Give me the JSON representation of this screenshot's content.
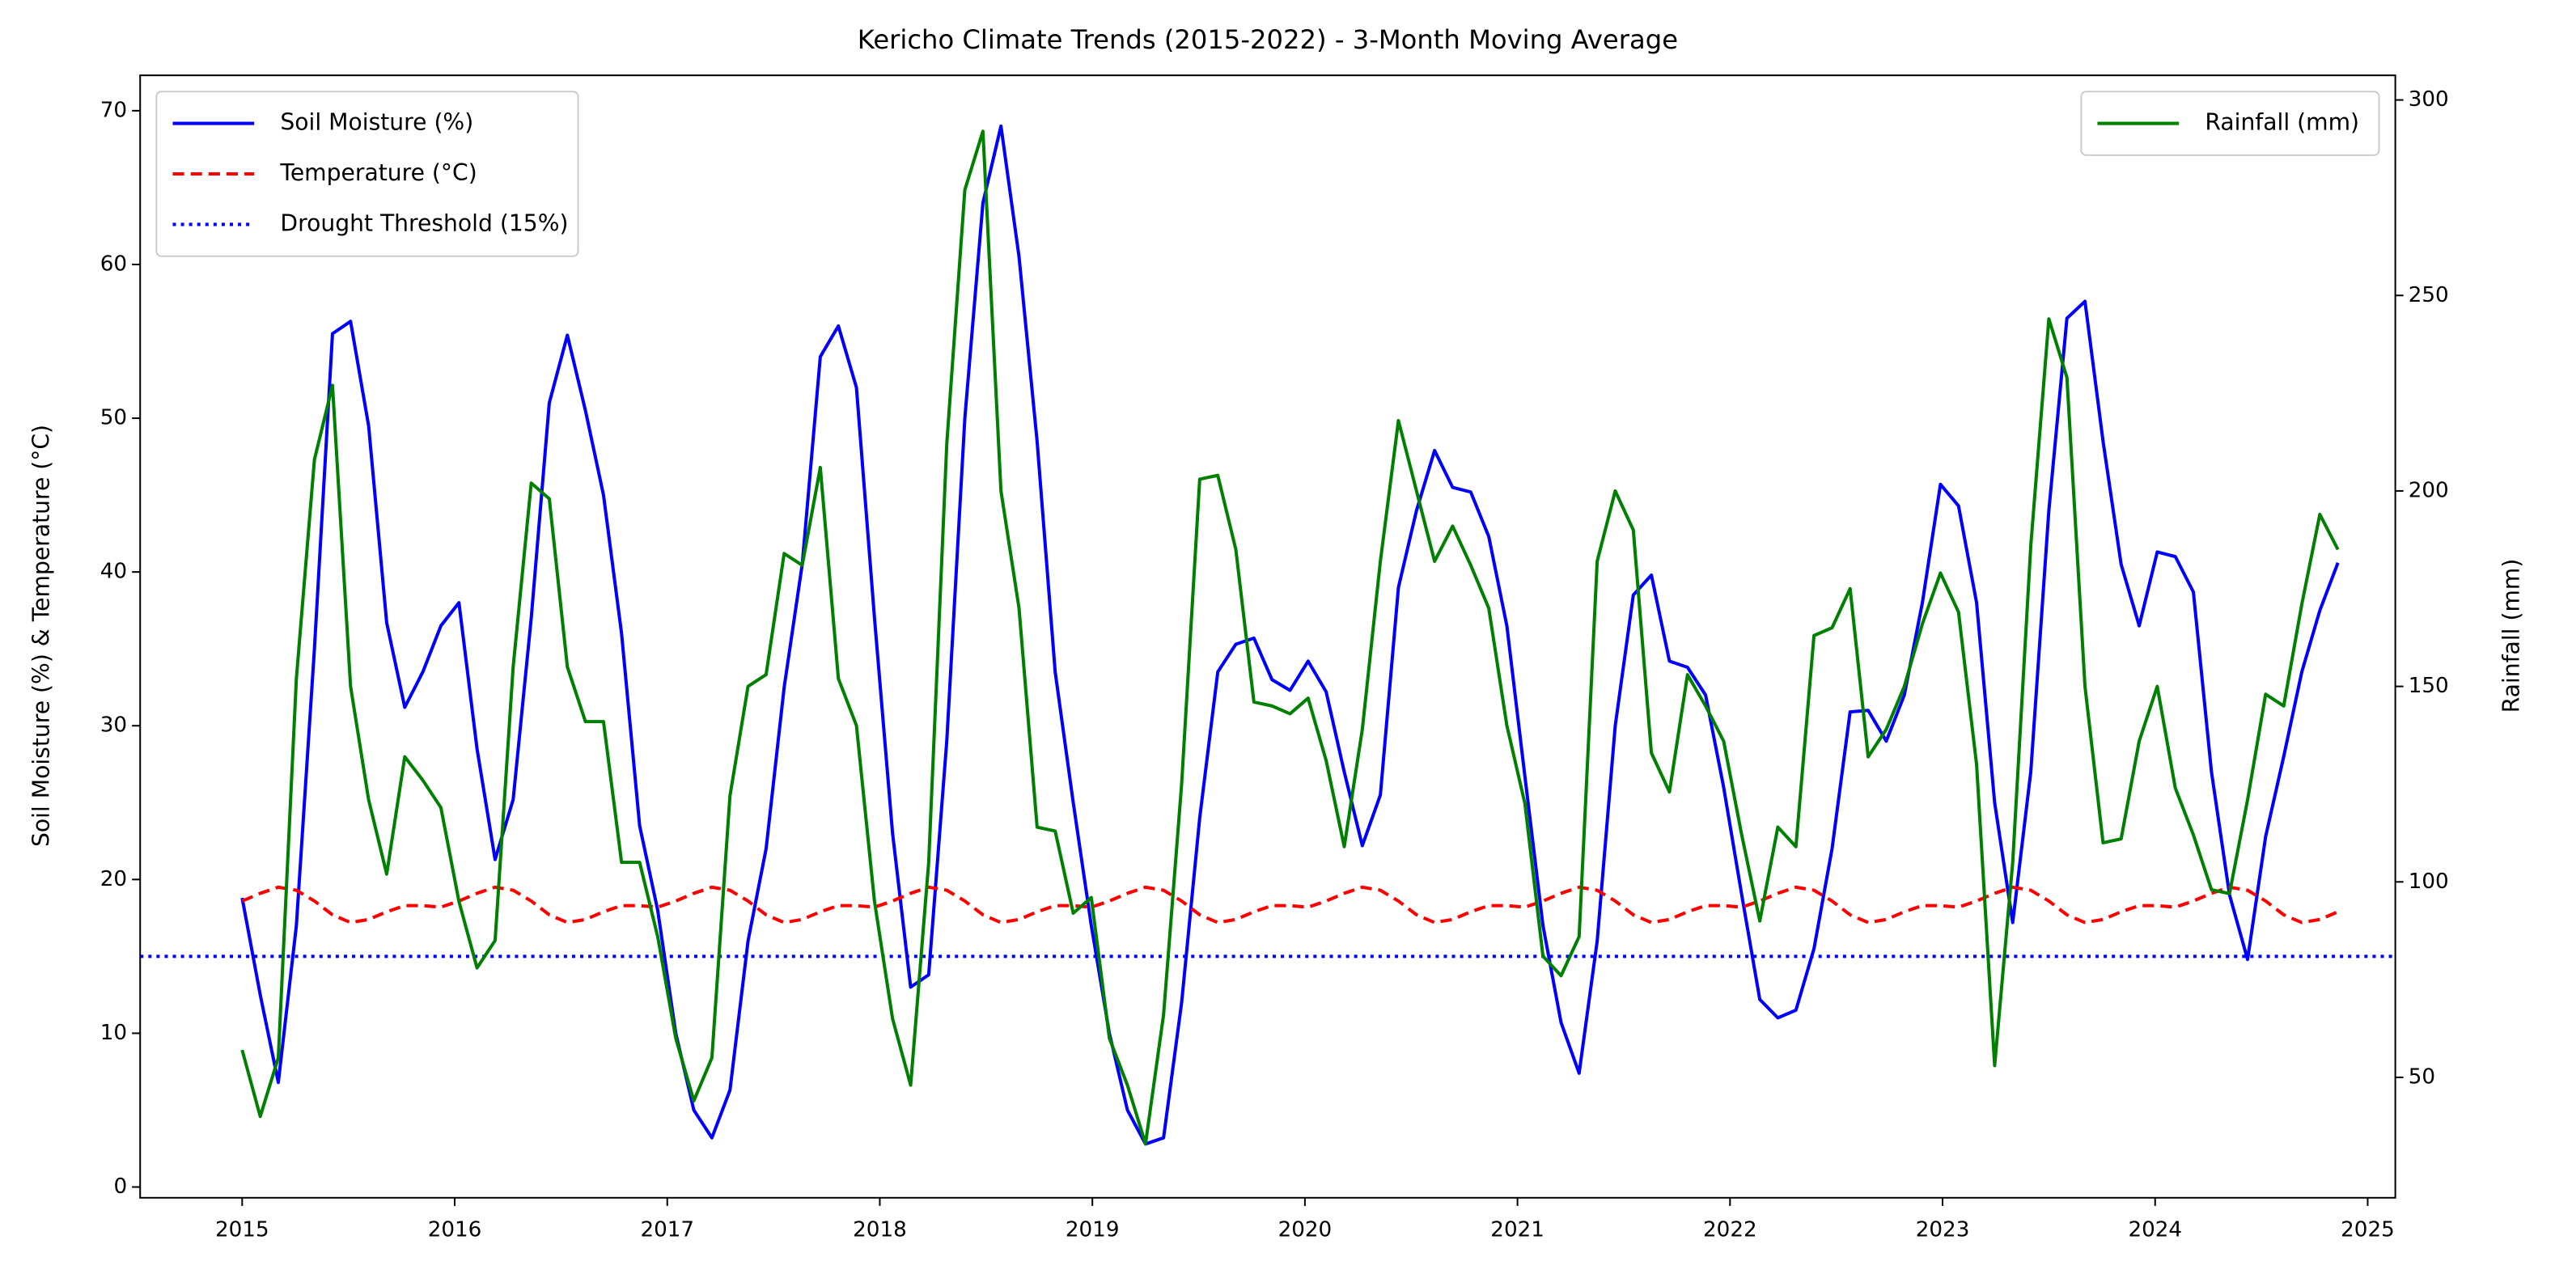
{
  "chart_data": {
    "type": "line",
    "title": "Kericho Climate Trends (2015-2022) - 3-Month Moving Average",
    "ylabel": "Soil Moisture (%) & Temperature (°C)",
    "y2label": "Rainfall (mm)",
    "x": [
      2015,
      2015.085,
      2015.17,
      2015.255,
      2015.34,
      2015.425,
      2015.51,
      2015.595,
      2015.68,
      2015.765,
      2015.85,
      2015.935,
      2016.02,
      2016.105,
      2016.19,
      2016.275,
      2016.36,
      2016.445,
      2016.53,
      2016.615,
      2016.7,
      2016.785,
      2016.87,
      2016.955,
      2017.04,
      2017.125,
      2017.21,
      2017.295,
      2017.38,
      2017.465,
      2017.55,
      2017.635,
      2017.72,
      2017.805,
      2017.89,
      2017.975,
      2018.06,
      2018.145,
      2018.23,
      2018.315,
      2018.4,
      2018.485,
      2018.57,
      2018.655,
      2018.74,
      2018.825,
      2018.91,
      2018.995,
      2019.08,
      2019.165,
      2019.25,
      2019.335,
      2019.42,
      2019.505,
      2019.59,
      2019.675,
      2019.76,
      2019.845,
      2019.93,
      2020.015,
      2020.1,
      2020.185,
      2020.27,
      2020.355,
      2020.44,
      2020.525,
      2020.61,
      2020.695,
      2020.78,
      2020.865,
      2020.95,
      2021.035,
      2021.12,
      2021.205,
      2021.29,
      2021.375,
      2021.46,
      2021.545,
      2021.63,
      2021.715,
      2021.8,
      2021.885,
      2021.97,
      2022.055,
      2022.14,
      2022.225,
      2022.31,
      2022.395,
      2022.48,
      2022.565,
      2022.65,
      2022.735,
      2022.82,
      2022.905,
      2022.99,
      2023.075,
      2023.16,
      2023.245,
      2023.33,
      2023.415,
      2023.5,
      2023.585,
      2023.67,
      2023.755,
      2023.84,
      2023.925,
      2024.01,
      2024.095,
      2024.18,
      2024.265,
      2024.35,
      2024.435,
      2024.52,
      2024.605,
      2024.69,
      2024.775,
      2024.86
    ],
    "series": [
      {
        "name": "Soil Moisture (%)",
        "color": "#0000ff",
        "style": "solid",
        "axis": "y",
        "values": [
          18.8,
          12.5,
          6.8,
          17,
          35,
          55.5,
          56.3,
          49.5,
          36.7,
          31.2,
          33.5,
          36.5,
          38,
          28.5,
          21.3,
          25.2,
          37,
          51,
          55.4,
          50.5,
          45,
          36,
          23.5,
          18,
          10,
          5,
          3.2,
          6.3,
          16,
          22,
          32.5,
          40.5,
          54,
          56,
          52,
          37,
          23,
          13,
          13.8,
          29,
          50,
          64,
          69,
          60.5,
          48.5,
          33.5,
          25,
          17,
          10,
          5,
          2.8,
          3.2,
          12,
          24,
          33.5,
          35.3,
          35.7,
          33,
          32.3,
          34.2,
          32.2,
          27,
          22.2,
          25.5,
          39,
          44,
          47.9,
          45.5,
          45.2,
          42.3,
          36.5,
          26.7,
          17,
          10.7,
          7.4,
          16,
          30,
          38.5,
          39.8,
          34.2,
          33.8,
          32,
          26,
          19,
          12.2,
          11,
          11.5,
          15.5,
          22,
          30.9,
          31,
          29,
          32,
          38,
          45.7,
          44.3,
          38,
          25,
          17.2,
          27,
          44,
          56.5,
          57.6,
          48.5,
          40.5,
          36.5,
          41.3,
          41,
          38.7,
          27,
          19,
          14.8,
          22.8,
          28,
          33.5,
          37.5,
          40.6
        ]
      },
      {
        "name": "Temperature (°C)",
        "color": "#ff0000",
        "style": "dashed",
        "axis": "y",
        "values": [
          18.6,
          19.1,
          19.5,
          19.3,
          18.6,
          17.7,
          17.2,
          17.4,
          17.9,
          18.3,
          18.3,
          18.2,
          18.6,
          19.1,
          19.5,
          19.3,
          18.6,
          17.7,
          17.2,
          17.4,
          17.9,
          18.3,
          18.3,
          18.2,
          18.6,
          19.1,
          19.5,
          19.3,
          18.6,
          17.7,
          17.2,
          17.4,
          17.9,
          18.3,
          18.3,
          18.2,
          18.6,
          19.1,
          19.5,
          19.3,
          18.6,
          17.7,
          17.2,
          17.4,
          17.9,
          18.3,
          18.3,
          18.2,
          18.6,
          19.1,
          19.5,
          19.3,
          18.6,
          17.7,
          17.2,
          17.4,
          17.9,
          18.3,
          18.3,
          18.2,
          18.6,
          19.1,
          19.5,
          19.3,
          18.6,
          17.7,
          17.2,
          17.4,
          17.9,
          18.3,
          18.3,
          18.2,
          18.6,
          19.1,
          19.5,
          19.3,
          18.6,
          17.7,
          17.2,
          17.4,
          17.9,
          18.3,
          18.3,
          18.2,
          18.6,
          19.1,
          19.5,
          19.3,
          18.6,
          17.7,
          17.2,
          17.4,
          17.9,
          18.3,
          18.3,
          18.2,
          18.6,
          19.1,
          19.5,
          19.3,
          18.6,
          17.7,
          17.2,
          17.4,
          17.9,
          18.3,
          18.3,
          18.2,
          18.6,
          19.1,
          19.5,
          19.3,
          18.6,
          17.7,
          17.2,
          17.4,
          17.9
        ]
      },
      {
        "name": "Rainfall (mm)",
        "color": "#008000",
        "style": "solid",
        "axis": "y2",
        "values": [
          57,
          40,
          55,
          152,
          208,
          227,
          150,
          121,
          102,
          132,
          126,
          119,
          95,
          78,
          85,
          155,
          202,
          198,
          155,
          141,
          141,
          105,
          105,
          86,
          60,
          44,
          55,
          122,
          150,
          153,
          184,
          181,
          206,
          152,
          140,
          95,
          65,
          48,
          105,
          212,
          277,
          292,
          200,
          170,
          114,
          113,
          92,
          96,
          60,
          48,
          33,
          66,
          125,
          203,
          204,
          185,
          146,
          145,
          143,
          147,
          131,
          109,
          139,
          182,
          218,
          200,
          182,
          191,
          181,
          170,
          140,
          120,
          81,
          76,
          86,
          182,
          200,
          190,
          133,
          123,
          153,
          145,
          136,
          112,
          90,
          114,
          109,
          163,
          165,
          175,
          132,
          139,
          150,
          166,
          179,
          169,
          130,
          53,
          105,
          186,
          244,
          229,
          150,
          110,
          111,
          136,
          150,
          124,
          112,
          98,
          97,
          121,
          148,
          145,
          171,
          194,
          185
        ]
      }
    ],
    "hlines": [
      {
        "name": "Drought Threshold (15%)",
        "value": 15,
        "color": "#0000ff",
        "style": "dotted",
        "axis": "y"
      }
    ],
    "xlim": [
      2014.52,
      2025.13
    ],
    "ylim": [
      -0.7,
      72.3
    ],
    "y2lim": [
      19.2,
      306.3
    ],
    "xticks": [
      2015,
      2016,
      2017,
      2018,
      2019,
      2020,
      2021,
      2022,
      2023,
      2024,
      2025
    ],
    "yticks": [
      0,
      10,
      20,
      30,
      40,
      50,
      60,
      70
    ],
    "y2ticks": [
      50,
      100,
      150,
      200,
      250,
      300
    ],
    "legend": "upper left",
    "legend2": "upper right",
    "grid": false
  }
}
